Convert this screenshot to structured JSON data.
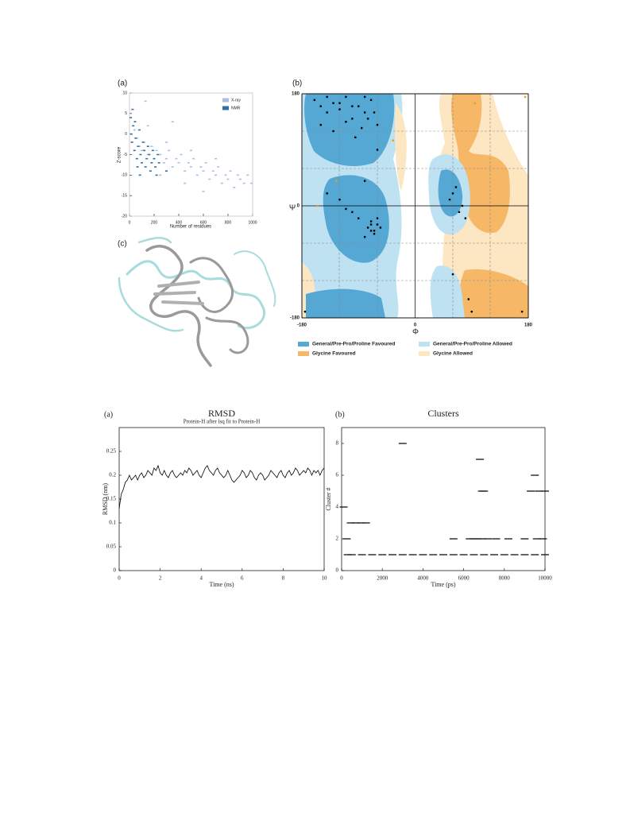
{
  "image_panel": {
    "label": "(c)"
  },
  "chart_data": [
    {
      "type": "scatter",
      "panel_label": "(a)",
      "xlabel": "Number of residues",
      "ylabel": "Z-score",
      "xlim": [
        0,
        1000
      ],
      "xticks": [
        0,
        200,
        400,
        600,
        800,
        1000
      ],
      "ylim": [
        -20,
        10
      ],
      "yticks": [
        -20,
        -15,
        -10,
        -5,
        0,
        5,
        10
      ],
      "legend": "upper right",
      "series": [
        {
          "name": "X-ray",
          "color": "#a9c0e0",
          "x": [
            20,
            40,
            60,
            80,
            100,
            120,
            150,
            180,
            200,
            220,
            250,
            280,
            300,
            320,
            350,
            380,
            400,
            420,
            450,
            480,
            500,
            520,
            550,
            580,
            600,
            620,
            650,
            680,
            700,
            720,
            750,
            780,
            800,
            820,
            850,
            880,
            900,
            930,
            960,
            990,
            150,
            300,
            500,
            700,
            250,
            450,
            600,
            350,
            130
          ],
          "values": [
            -2,
            1,
            -1,
            -3,
            -4,
            -2,
            -5,
            -3,
            -6,
            -4,
            -5,
            -7,
            -6,
            -4,
            -8,
            -6,
            -7,
            -5,
            -9,
            -7,
            -8,
            -6,
            -10,
            -8,
            -9,
            -7,
            -11,
            -9,
            -10,
            -8,
            -12,
            -10,
            -11,
            -9,
            -13,
            -10,
            -11,
            -12,
            -10,
            -12,
            2,
            -2,
            -4,
            -6,
            -10,
            -12,
            -14,
            3,
            8
          ]
        },
        {
          "name": "NMR",
          "color": "#2f6fa8",
          "x": [
            10,
            15,
            20,
            30,
            40,
            50,
            60,
            70,
            80,
            90,
            100,
            110,
            120,
            130,
            140,
            150,
            160,
            170,
            180,
            190,
            200,
            210,
            220,
            230,
            240,
            300,
            25,
            45,
            65,
            85
          ],
          "values": [
            4,
            0,
            -2,
            2,
            -4,
            -1,
            -6,
            -3,
            1,
            -5,
            -7,
            -2,
            -4,
            -8,
            -6,
            -3,
            -5,
            -9,
            -7,
            -4,
            -6,
            -8,
            -10,
            -5,
            -7,
            -9,
            6,
            3,
            -8,
            -10
          ]
        }
      ]
    },
    {
      "type": "scatter",
      "panel_label": "(b)",
      "xlabel": "Φ",
      "ylabel": "Ψ",
      "xlim": [
        -180,
        180
      ],
      "xticks": [
        -180,
        0,
        180
      ],
      "ylim": [
        -180,
        180
      ],
      "yticks": [
        -180,
        0,
        180
      ],
      "grid": true,
      "regions": [
        {
          "name": "General/Pre-Pro/Proline Favoured",
          "color": "#55a8d4"
        },
        {
          "name": "General/Pre-Pro/Proline Allowed",
          "color": "#bfe2f3"
        },
        {
          "name": "Glycine Favoured",
          "color": "#f6b866"
        },
        {
          "name": "Glycine Allowed",
          "color": "#fde6c2"
        }
      ],
      "series": [
        {
          "color": "#000000",
          "x": [
            -160,
            -150,
            -140,
            -130,
            -120,
            -110,
            -100,
            -90,
            -80,
            -70,
            -150,
            -130,
            -110,
            -95,
            -85,
            -75,
            -65,
            -140,
            -120,
            -100,
            -80,
            -60,
            -70,
            -65,
            -60,
            -55,
            -70,
            -80,
            -90,
            -100,
            -75,
            -65,
            -60,
            -120,
            -110,
            -140,
            -60,
            -80,
            -175,
            60,
            55,
            65,
            70,
            75,
            80,
            85,
            90,
            60,
            170,
            -70
          ],
          "values": [
            170,
            160,
            150,
            165,
            155,
            175,
            140,
            160,
            150,
            170,
            130,
            120,
            135,
            110,
            125,
            140,
            150,
            175,
            165,
            160,
            175,
            130,
            -40,
            -45,
            -30,
            -35,
            -25,
            -50,
            -20,
            -10,
            -35,
            -40,
            -20,
            10,
            -5,
            20,
            90,
            40,
            -170,
            20,
            10,
            30,
            -10,
            0,
            -20,
            -150,
            -170,
            -110,
            -170,
            -30
          ]
        },
        {
          "color": "#f39c12",
          "x": [
            -35,
            -125,
            -155,
            95,
            175
          ],
          "values": [
            105,
            40,
            0,
            165,
            175
          ]
        }
      ]
    },
    {
      "type": "line",
      "panel_label": "(a)",
      "title": "RMSD",
      "subtitle": "Protein-H after lsq fit to Protein-H",
      "xlabel": "Time (ns)",
      "ylabel": "RMSD (nm)",
      "xlim": [
        0,
        10
      ],
      "xticks": [
        0,
        2,
        4,
        6,
        8,
        10
      ],
      "ylim": [
        0,
        0.3
      ],
      "yticks": [
        0,
        0.05,
        0.1,
        0.15,
        0.2,
        0.25
      ],
      "series": [
        {
          "color": "#000000",
          "x": [
            0,
            0.1,
            0.2,
            0.3,
            0.4,
            0.5,
            0.6,
            0.7,
            0.8,
            0.9,
            1,
            1.1,
            1.2,
            1.3,
            1.4,
            1.5,
            1.6,
            1.7,
            1.8,
            1.9,
            2,
            2.1,
            2.2,
            2.3,
            2.4,
            2.5,
            2.6,
            2.7,
            2.8,
            2.9,
            3,
            3.1,
            3.2,
            3.3,
            3.4,
            3.5,
            3.6,
            3.7,
            3.8,
            3.9,
            4,
            4.1,
            4.2,
            4.3,
            4.4,
            4.5,
            4.6,
            4.7,
            4.8,
            4.9,
            5,
            5.1,
            5.2,
            5.3,
            5.4,
            5.5,
            5.6,
            5.7,
            5.8,
            5.9,
            6,
            6.1,
            6.2,
            6.3,
            6.4,
            6.5,
            6.6,
            6.7,
            6.8,
            6.9,
            7,
            7.1,
            7.2,
            7.3,
            7.4,
            7.5,
            7.6,
            7.7,
            7.8,
            7.9,
            8,
            8.1,
            8.2,
            8.3,
            8.4,
            8.5,
            8.6,
            8.7,
            8.8,
            8.9,
            9,
            9.1,
            9.2,
            9.3,
            9.4,
            9.5,
            9.6,
            9.7,
            9.8,
            9.9,
            10
          ],
          "values": [
            0.13,
            0.16,
            0.17,
            0.185,
            0.19,
            0.2,
            0.19,
            0.195,
            0.2,
            0.19,
            0.2,
            0.205,
            0.195,
            0.2,
            0.21,
            0.205,
            0.2,
            0.215,
            0.21,
            0.22,
            0.205,
            0.2,
            0.21,
            0.2,
            0.195,
            0.205,
            0.21,
            0.2,
            0.195,
            0.2,
            0.205,
            0.2,
            0.21,
            0.205,
            0.215,
            0.21,
            0.2,
            0.205,
            0.21,
            0.2,
            0.195,
            0.205,
            0.215,
            0.22,
            0.21,
            0.205,
            0.2,
            0.21,
            0.215,
            0.205,
            0.2,
            0.195,
            0.2,
            0.21,
            0.2,
            0.19,
            0.185,
            0.19,
            0.195,
            0.2,
            0.21,
            0.205,
            0.195,
            0.2,
            0.21,
            0.205,
            0.195,
            0.19,
            0.2,
            0.205,
            0.2,
            0.19,
            0.195,
            0.2,
            0.21,
            0.205,
            0.2,
            0.195,
            0.205,
            0.21,
            0.2,
            0.195,
            0.205,
            0.21,
            0.2,
            0.205,
            0.215,
            0.21,
            0.2,
            0.205,
            0.21,
            0.205,
            0.215,
            0.21,
            0.2,
            0.21,
            0.205,
            0.21,
            0.2,
            0.21,
            0.215
          ]
        }
      ]
    },
    {
      "type": "scatter",
      "panel_label": "(b)",
      "title": "Clusters",
      "xlabel": "Time (ps)",
      "ylabel": "Cluster #",
      "xlim": [
        0,
        10000
      ],
      "xticks": [
        0,
        2000,
        4000,
        6000,
        8000,
        10000
      ],
      "ylim": [
        0,
        9
      ],
      "yticks": [
        0,
        2,
        4,
        6,
        8
      ],
      "series": [
        {
          "color": "#000000",
          "x": [
            300,
            500,
            1000,
            1500,
            2000,
            2500,
            3000,
            3500,
            4000,
            4500,
            5000,
            5500,
            6000,
            6500,
            7000,
            7500,
            8000,
            8500,
            9000,
            9500,
            10000,
            100,
            250,
            450,
            700,
            950,
            1200,
            5500,
            6300,
            6500,
            6700,
            6900,
            7200,
            7600,
            8200,
            9000,
            9600,
            9900,
            3000,
            6800,
            6900,
            7000,
            9300,
            9700,
            10000,
            9500
          ],
          "values": [
            1,
            1,
            1,
            1,
            1,
            1,
            1,
            1,
            1,
            1,
            1,
            1,
            1,
            1,
            1,
            1,
            1,
            1,
            1,
            1,
            1,
            4,
            2,
            3,
            3,
            3,
            3,
            2,
            2,
            2,
            2,
            2,
            2,
            2,
            2,
            2,
            2,
            2,
            8,
            7,
            5,
            5,
            5,
            5,
            5,
            6
          ]
        }
      ]
    }
  ]
}
